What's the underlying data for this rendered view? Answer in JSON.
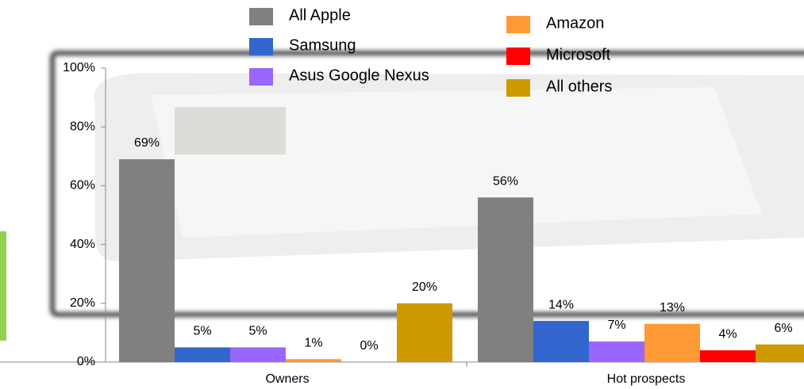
{
  "chart_data": {
    "type": "bar",
    "categories": [
      "Owners",
      "Hot prospects"
    ],
    "series": [
      {
        "name": "All Apple",
        "color": "#808080",
        "values": [
          69,
          56
        ],
        "value_labels": [
          "69%",
          "56%"
        ]
      },
      {
        "name": "Samsung",
        "color": "#3366cc",
        "values": [
          5,
          14
        ],
        "value_labels": [
          "5%",
          "14%"
        ]
      },
      {
        "name": "Asus Google Nexus",
        "color": "#9966ff",
        "values": [
          5,
          7
        ],
        "value_labels": [
          "5%",
          "7%"
        ]
      },
      {
        "name": "Amazon",
        "color": "#ff9933",
        "values": [
          1,
          13
        ],
        "value_labels": [
          "1%",
          "13%"
        ]
      },
      {
        "name": "Microsoft",
        "color": "#ff0000",
        "values": [
          0,
          4
        ],
        "value_labels": [
          "0%",
          "4%"
        ]
      },
      {
        "name": "All others",
        "color": "#cc9900",
        "values": [
          20,
          6
        ],
        "value_labels": [
          "20%",
          "6%"
        ]
      }
    ],
    "ylim": [
      0,
      100
    ],
    "yticks": [
      {
        "value": 0,
        "label": "0%"
      },
      {
        "value": 20,
        "label": "20%"
      },
      {
        "value": 40,
        "label": "40%"
      },
      {
        "value": 60,
        "label": "60%"
      },
      {
        "value": 80,
        "label": "80%"
      },
      {
        "value": 100,
        "label": "100%"
      }
    ]
  }
}
